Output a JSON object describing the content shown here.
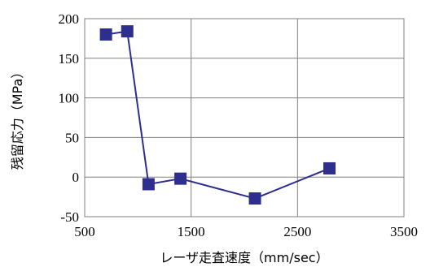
{
  "chart_data": {
    "type": "line",
    "xlabel": "レーザ走査速度（mm/sec）",
    "ylabel": "残留応力（MPa）",
    "xlim": [
      500,
      3500
    ],
    "ylim": [
      -50,
      200
    ],
    "x_ticks": [
      "500",
      "1500",
      "2500",
      "3500"
    ],
    "y_ticks": [
      "200",
      "150",
      "100",
      "50",
      "0",
      "-50"
    ],
    "grid": true,
    "series": [
      {
        "color": "#2E2E8F",
        "marker": "square",
        "points": [
          {
            "x": 700,
            "y": 180
          },
          {
            "x": 900,
            "y": 184
          },
          {
            "x": 1100,
            "y": -9
          },
          {
            "x": 1400,
            "y": -2
          },
          {
            "x": 2100,
            "y": -27
          },
          {
            "x": 2800,
            "y": 11
          }
        ]
      }
    ]
  }
}
